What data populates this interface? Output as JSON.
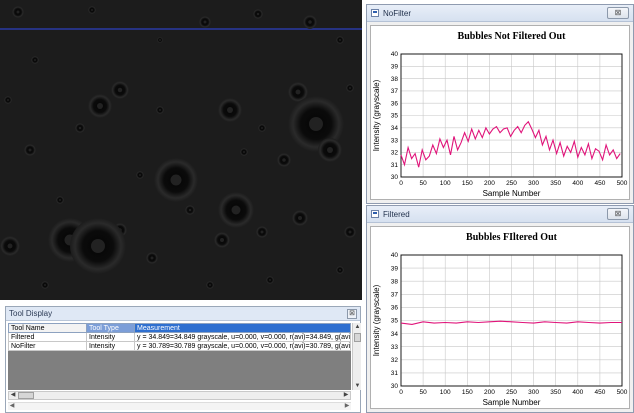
{
  "tool_display": {
    "title": "Tool Display",
    "close_glyph": "⊠",
    "columns": [
      "Tool Name",
      "Tool Type",
      "Measurement"
    ],
    "rows": [
      {
        "name": "Filtered",
        "type": "Intensity",
        "measurement": "y = 34.849=34.849 grayscale, u=0.000, v=0.000, r(avi)=34.849, g(avi)=34.849"
      },
      {
        "name": "NoFilter",
        "type": "Intensity",
        "measurement": "y = 30.789=30.789 grayscale, u=0.000, v=0.000, r(avi)=30.789, g(avi)=30.789"
      }
    ]
  },
  "windows": [
    {
      "title": "NoFilter",
      "close_glyph": "⊠"
    },
    {
      "title": "Filtered",
      "close_glyph": "⊠"
    }
  ],
  "chart_data": [
    {
      "type": "line",
      "title": "Bubbles Not Filtered Out",
      "xlabel": "Sample Number",
      "ylabel": "Intensity (grayscale)",
      "xlim": [
        0,
        500
      ],
      "ylim": [
        30,
        40
      ],
      "xticks": [
        0,
        50,
        100,
        150,
        200,
        250,
        300,
        350,
        400,
        450,
        500
      ],
      "yticks": [
        30,
        31,
        32,
        33,
        34,
        35,
        36,
        37,
        38,
        39,
        40
      ],
      "grid": true,
      "series_color": "#e0147a",
      "series": [
        {
          "x": [
            0,
            8,
            16,
            24,
            32,
            40,
            48,
            56,
            64,
            72,
            80,
            88,
            96,
            104,
            112,
            120,
            128,
            136,
            144,
            152,
            160,
            168,
            176,
            184,
            192,
            200,
            208,
            216,
            224,
            232,
            240,
            248,
            256,
            264,
            272,
            280,
            288,
            296,
            304,
            312,
            320,
            328,
            336,
            344,
            352,
            360,
            368,
            376,
            384,
            392,
            400,
            408,
            416,
            424,
            432,
            440,
            448,
            456,
            464,
            472,
            480,
            488,
            496
          ],
          "values": [
            31.8,
            31.0,
            32.4,
            31.5,
            31.9,
            30.8,
            32.2,
            31.4,
            31.7,
            32.6,
            31.9,
            33.1,
            32.4,
            33.0,
            31.8,
            33.3,
            32.2,
            32.8,
            33.6,
            32.9,
            33.9,
            33.1,
            33.8,
            33.2,
            34.0,
            33.5,
            33.9,
            34.1,
            33.6,
            33.9,
            34.0,
            33.3,
            33.8,
            34.1,
            33.6,
            34.2,
            34.5,
            33.9,
            33.2,
            33.8,
            32.6,
            33.3,
            32.2,
            33.0,
            31.9,
            32.8,
            31.7,
            32.5,
            32.0,
            32.9,
            31.6,
            32.4,
            31.8,
            32.7,
            31.5,
            32.3,
            32.1,
            31.4,
            32.6,
            31.8,
            32.2,
            31.5,
            31.9
          ]
        }
      ]
    },
    {
      "type": "line",
      "title": "Bubbles FIltered Out",
      "xlabel": "Sample Number",
      "ylabel": "Intensity (grayscale)",
      "xlim": [
        0,
        500
      ],
      "ylim": [
        30,
        40
      ],
      "xticks": [
        0,
        50,
        100,
        150,
        200,
        250,
        300,
        350,
        400,
        450,
        500
      ],
      "yticks": [
        30,
        31,
        32,
        33,
        34,
        35,
        36,
        37,
        38,
        39,
        40
      ],
      "grid": true,
      "series_color": "#e0147a",
      "series": [
        {
          "x": [
            0,
            25,
            50,
            75,
            100,
            125,
            150,
            175,
            200,
            225,
            250,
            275,
            300,
            325,
            350,
            375,
            400,
            425,
            450,
            475,
            500
          ],
          "values": [
            34.8,
            34.7,
            34.9,
            34.8,
            34.85,
            34.8,
            34.9,
            34.85,
            34.9,
            34.95,
            34.9,
            34.85,
            34.8,
            34.9,
            34.85,
            34.8,
            34.9,
            34.85,
            34.8,
            34.85,
            34.85
          ]
        }
      ]
    }
  ]
}
